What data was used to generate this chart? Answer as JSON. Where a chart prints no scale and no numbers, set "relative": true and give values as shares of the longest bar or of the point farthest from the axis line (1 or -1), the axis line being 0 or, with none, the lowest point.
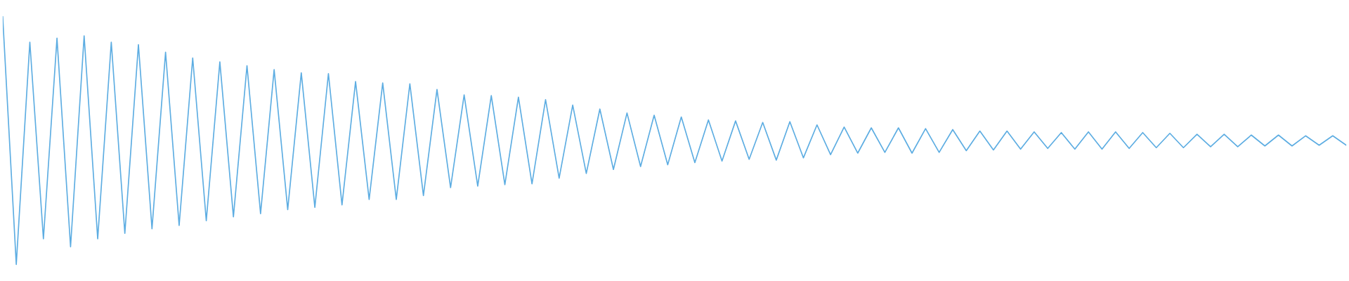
{
  "chart_data": {
    "type": "line",
    "relative": true,
    "grid": false,
    "legend": false,
    "marker": "none",
    "line_style": "solid",
    "categories": [
      null,
      null,
      null,
      null,
      null,
      null,
      null,
      null,
      null,
      null,
      null,
      null,
      null,
      null,
      null,
      null,
      null,
      null,
      null,
      null,
      null,
      null,
      null,
      null,
      null,
      null,
      null,
      null,
      null,
      null,
      null,
      null,
      null,
      null,
      null,
      null,
      null,
      null,
      null,
      null,
      null,
      null,
      null,
      null,
      null,
      null,
      null,
      null,
      null,
      null,
      null,
      null,
      null,
      null,
      null,
      null,
      null,
      null,
      null,
      null,
      null,
      null,
      null,
      null,
      null,
      null,
      null,
      null,
      null,
      null,
      null,
      null,
      null,
      null,
      null,
      null,
      null,
      null,
      null,
      null,
      null,
      null,
      null,
      null,
      null,
      null,
      null,
      null,
      null,
      null,
      null,
      null,
      null,
      null,
      null,
      null,
      null,
      null,
      null,
      null
    ],
    "series": [
      {
        "color": "#5dade2",
        "values": [
          1.0,
          0.0,
          0.897,
          0.103,
          0.913,
          0.071,
          0.922,
          0.103,
          0.897,
          0.125,
          0.887,
          0.144,
          0.856,
          0.157,
          0.833,
          0.176,
          0.817,
          0.192,
          0.802,
          0.205,
          0.786,
          0.221,
          0.773,
          0.23,
          0.77,
          0.24,
          0.738,
          0.262,
          0.732,
          0.262,
          0.729,
          0.278,
          0.706,
          0.31,
          0.684,
          0.316,
          0.681,
          0.322,
          0.675,
          0.325,
          0.665,
          0.348,
          0.643,
          0.367,
          0.627,
          0.383,
          0.611,
          0.395,
          0.602,
          0.402,
          0.595,
          0.411,
          0.583,
          0.417,
          0.579,
          0.424,
          0.573,
          0.421,
          0.576,
          0.43,
          0.563,
          0.443,
          0.554,
          0.449,
          0.551,
          0.452,
          0.551,
          0.449,
          0.548,
          0.452,
          0.544,
          0.459,
          0.538,
          0.462,
          0.538,
          0.465,
          0.535,
          0.468,
          0.532,
          0.465,
          0.535,
          0.465,
          0.535,
          0.468,
          0.532,
          0.471,
          0.529,
          0.471,
          0.525,
          0.475,
          0.525,
          0.475,
          0.522,
          0.478,
          0.522,
          0.478,
          0.519,
          0.481,
          0.519,
          0.481
        ]
      }
    ]
  }
}
